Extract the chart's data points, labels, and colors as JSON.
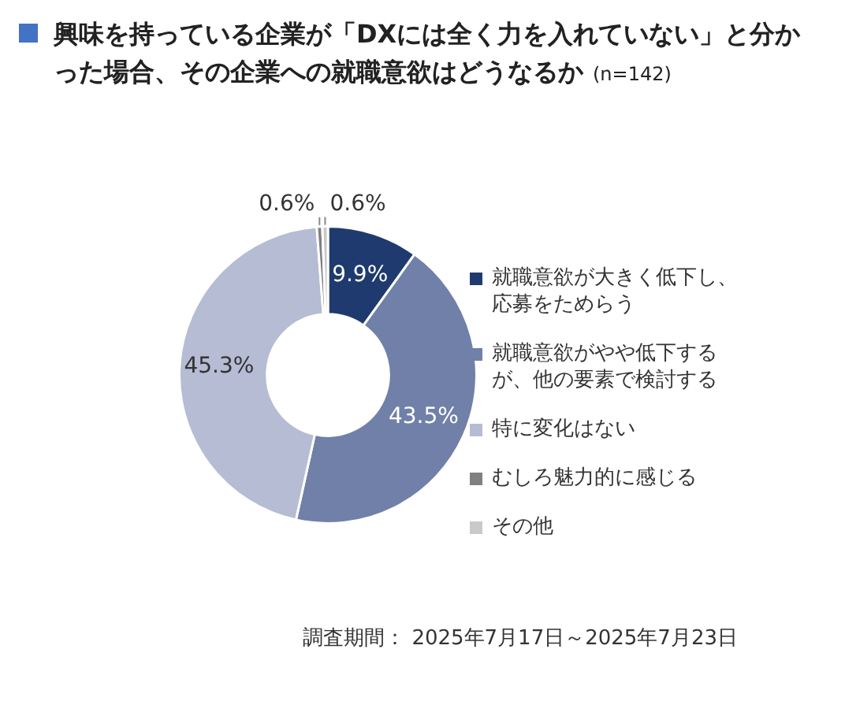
{
  "chart_data": {
    "type": "donut",
    "title": "興味を持っている企業が「DXには全く力を入れていない」と分かった場合、その企業への就職意欲はどうなるか",
    "subtitle": "(n=142)",
    "categories": [
      "就職意欲が大きく低下し、応募をためらう",
      "就職意欲がやや低下するが、他の要素で検討する",
      "特に変化はない",
      "むしろ魅力的に感じる",
      "その他"
    ],
    "values": [
      9.9,
      43.5,
      45.3,
      0.6,
      0.6
    ],
    "colors": [
      "#1f3a6e",
      "#7080a8",
      "#b5bcd3",
      "#808080",
      "#c9c9c9"
    ],
    "value_labels": [
      "9.9%",
      "43.5%",
      "45.3%",
      "0.6%",
      "0.6%"
    ],
    "legend": "right",
    "annotations": [
      "調査期間： 2025年7月17日～2025年7月23日"
    ]
  }
}
